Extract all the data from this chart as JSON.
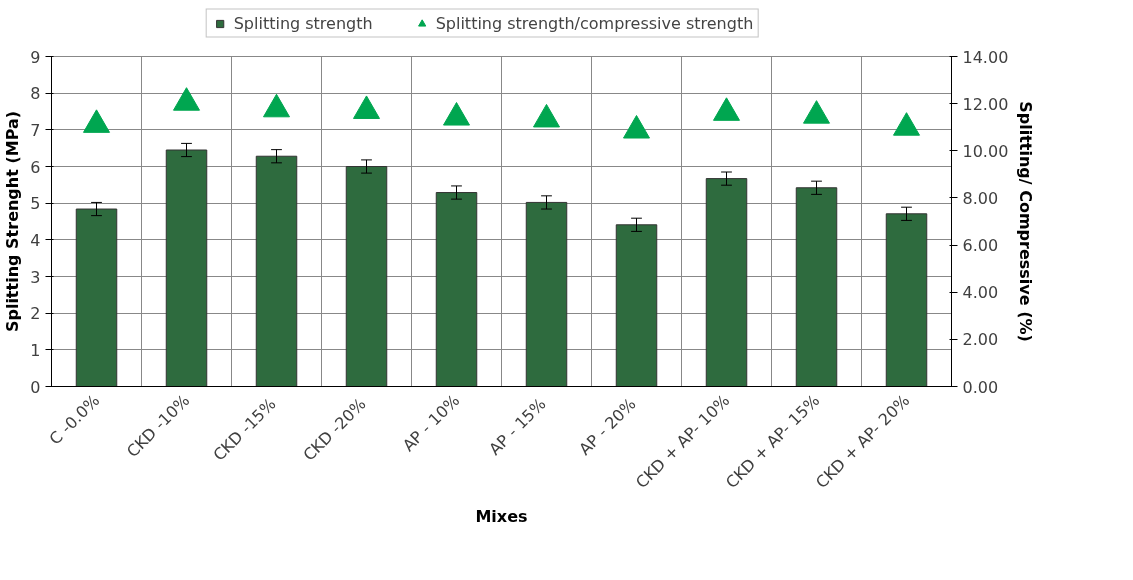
{
  "chart_data": {
    "type": "bar",
    "xlabel": "Mixes",
    "ylabel": "Splitting Strenght (MPa)",
    "y2label": "Splitting/ Compressive (%)",
    "categories": [
      "C -0.0%",
      "CKD -10%",
      "CKD  -15%",
      "CKD  -20%",
      "AP - 10%",
      "AP  - 15%",
      "AP  - 20%",
      "CKD + AP- 10%",
      "CKD + AP- 15%",
      "CKD + AP- 20%"
    ],
    "series": [
      {
        "name": "Splitting strength",
        "color": "#2e6b3e",
        "values": [
          4.84,
          6.45,
          6.28,
          6.0,
          5.29,
          5.02,
          4.41,
          5.67,
          5.42,
          4.71
        ],
        "errors": [
          0.18,
          0.18,
          0.18,
          0.18,
          0.18,
          0.18,
          0.18,
          0.18,
          0.18,
          0.18
        ]
      },
      {
        "name": "Splitting strength/compressive strength",
        "type": "scatter",
        "axis": "y2",
        "marker": "triangle",
        "color": "#00a650",
        "values": [
          11.1,
          12.04,
          11.76,
          11.69,
          11.41,
          11.33,
          10.86,
          11.61,
          11.49,
          10.98
        ]
      }
    ],
    "ylim": [
      0,
      9
    ],
    "yticks": [
      0,
      1,
      2,
      3,
      4,
      5,
      6,
      7,
      8,
      9
    ],
    "y2lim": [
      0,
      14
    ],
    "y2ticks": [
      {
        "value": 0,
        "label": "0.00"
      },
      {
        "value": 2,
        "label": "2.00"
      },
      {
        "value": 4,
        "label": "4.00"
      },
      {
        "value": 6,
        "label": "6.00"
      },
      {
        "value": 8,
        "label": "8.00"
      },
      {
        "value": 10,
        "label": "10.00"
      },
      {
        "value": 12,
        "label": "12.00"
      },
      {
        "value": 14,
        "label": "14.00"
      }
    ],
    "grid": true,
    "legend": "top"
  }
}
